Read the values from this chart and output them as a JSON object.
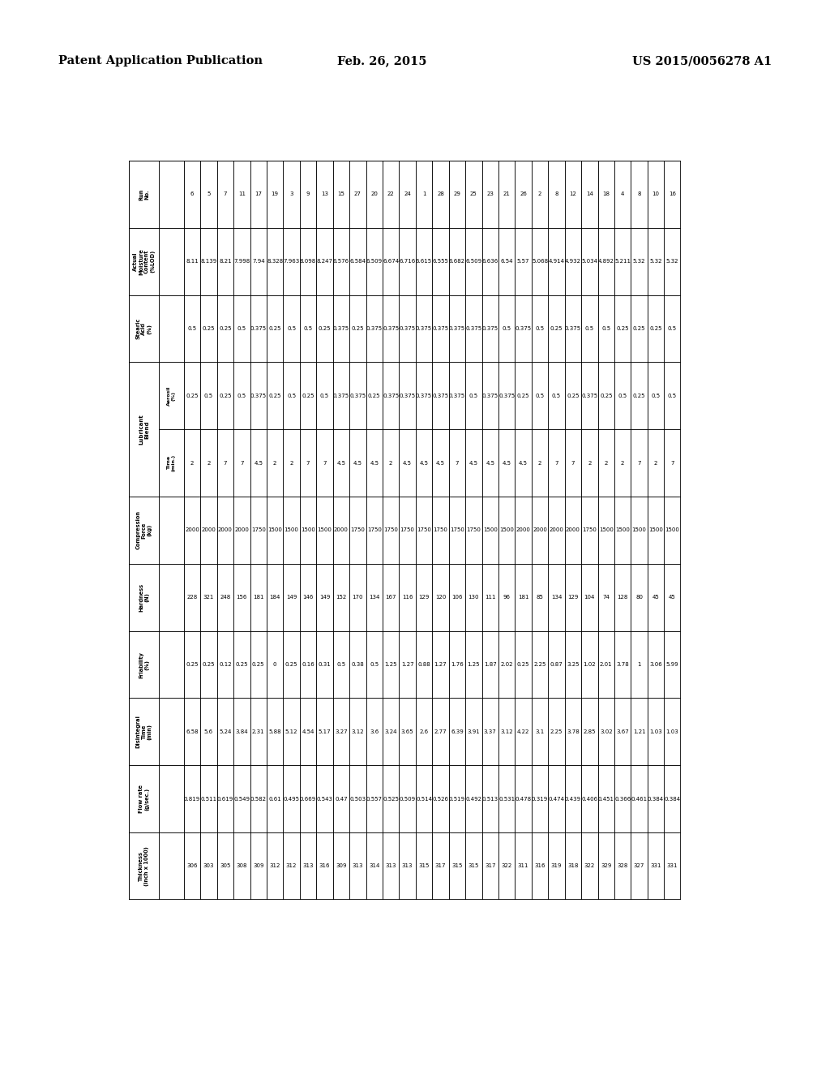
{
  "header_text_left": "Patent Application Publication",
  "header_text_center": "Feb. 26, 2015",
  "header_text_right": "US 2015/0056278 A1",
  "rows": [
    [
      "6",
      "8.11",
      "0.5",
      "0.25",
      "2",
      "2000",
      "228",
      "0.25",
      "6.58",
      "0.819",
      "306"
    ],
    [
      "5",
      "8.139",
      "0.25",
      "0.5",
      "2",
      "2000",
      "321",
      "0.25",
      "5.6",
      "0.511",
      "303"
    ],
    [
      "7",
      "8.21",
      "0.25",
      "0.25",
      "7",
      "2000",
      "248",
      "0.12",
      "5.24",
      "0.619",
      "305"
    ],
    [
      "11",
      "7.998",
      "0.5",
      "0.5",
      "7",
      "2000",
      "156",
      "0.25",
      "3.84",
      "0.549",
      "308"
    ],
    [
      "17",
      "7.94",
      "0.375",
      "0.375",
      "4.5",
      "1750",
      "181",
      "0.25",
      "2.31",
      "0.582",
      "309"
    ],
    [
      "19",
      "8.328",
      "0.25",
      "0.25",
      "2",
      "1500",
      "184",
      "0",
      "5.88",
      "0.61",
      "312"
    ],
    [
      "3",
      "7.963",
      "0.5",
      "0.5",
      "2",
      "1500",
      "149",
      "0.25",
      "5.12",
      "0.495",
      "312"
    ],
    [
      "9",
      "8.098",
      "0.5",
      "0.25",
      "7",
      "1500",
      "146",
      "0.16",
      "4.54",
      "0.669",
      "313"
    ],
    [
      "13",
      "8.247",
      "0.25",
      "0.5",
      "7",
      "1500",
      "149",
      "0.31",
      "5.17",
      "0.543",
      "316"
    ],
    [
      "15",
      "6.576",
      "0.375",
      "0.375",
      "4.5",
      "2000",
      "152",
      "0.5",
      "3.27",
      "0.47",
      "309"
    ],
    [
      "27",
      "6.584",
      "0.25",
      "0.375",
      "4.5",
      "1750",
      "170",
      "0.38",
      "3.12",
      "0.503",
      "313"
    ],
    [
      "20",
      "6.509",
      "0.375",
      "0.25",
      "4.5",
      "1750",
      "134",
      "0.5",
      "3.6",
      "0.557",
      "314"
    ],
    [
      "22",
      "6.674",
      "0.375",
      "0.375",
      "2",
      "1750",
      "167",
      "1.25",
      "3.24",
      "0.525",
      "313"
    ],
    [
      "24",
      "6.716",
      "0.375",
      "0.375",
      "4.5",
      "1750",
      "116",
      "1.27",
      "3.65",
      "0.509",
      "313"
    ],
    [
      "1",
      "6.615",
      "0.375",
      "0.375",
      "4.5",
      "1750",
      "129",
      "0.88",
      "2.6",
      "0.514",
      "315"
    ],
    [
      "28",
      "6.555",
      "0.375",
      "0.375",
      "4.5",
      "1750",
      "120",
      "1.27",
      "2.77",
      "0.526",
      "317"
    ],
    [
      "29",
      "6.682",
      "0.375",
      "0.375",
      "7",
      "1750",
      "106",
      "1.76",
      "6.39",
      "0.519",
      "315"
    ],
    [
      "25",
      "6.509",
      "0.375",
      "0.5",
      "4.5",
      "1750",
      "130",
      "1.25",
      "3.91",
      "0.492",
      "315"
    ],
    [
      "23",
      "6.636",
      "0.375",
      "0.375",
      "4.5",
      "1500",
      "111",
      "1.87",
      "3.37",
      "0.513",
      "317"
    ],
    [
      "21",
      "6.54",
      "0.5",
      "0.375",
      "4.5",
      "1500",
      "96",
      "2.02",
      "3.12",
      "0.531",
      "322"
    ],
    [
      "26",
      "5.57",
      "0.375",
      "0.25",
      "4.5",
      "2000",
      "181",
      "0.25",
      "4.22",
      "0.478",
      "311"
    ],
    [
      "2",
      "5.068",
      "0.5",
      "0.5",
      "2",
      "2000",
      "85",
      "2.25",
      "3.1",
      "0.319",
      "316"
    ],
    [
      "8",
      "4.914",
      "0.25",
      "0.5",
      "7",
      "2000",
      "134",
      "0.87",
      "2.25",
      "0.474",
      "319"
    ],
    [
      "12",
      "4.932",
      "0.375",
      "0.25",
      "7",
      "2000",
      "129",
      "3.25",
      "3.78",
      "0.439",
      "318"
    ],
    [
      "14",
      "5.034",
      "0.5",
      "0.375",
      "2",
      "1750",
      "104",
      "1.02",
      "2.85",
      "0.406",
      "322"
    ],
    [
      "18",
      "4.892",
      "0.5",
      "0.25",
      "2",
      "1500",
      "74",
      "2.01",
      "3.02",
      "0.451",
      "329"
    ],
    [
      "4",
      "5.211",
      "0.25",
      "0.5",
      "2",
      "1500",
      "128",
      "3.78",
      "3.67",
      "0.366",
      "328"
    ],
    [
      "8",
      "5.32",
      "0.25",
      "0.25",
      "7",
      "1500",
      "80",
      "1",
      "1.21",
      "0.461",
      "327"
    ],
    [
      "10",
      "5.32",
      "0.25",
      "0.5",
      "2",
      "1500",
      "45",
      "3.06",
      "1.03",
      "0.384",
      "331"
    ],
    [
      "16",
      "5.32",
      "0.5",
      "0.5",
      "7",
      "1500",
      "45",
      "5.99",
      "1.03",
      "0.384",
      "331"
    ]
  ],
  "bg_color": "#ffffff",
  "table_border_color": "#000000",
  "text_color": "#000000"
}
